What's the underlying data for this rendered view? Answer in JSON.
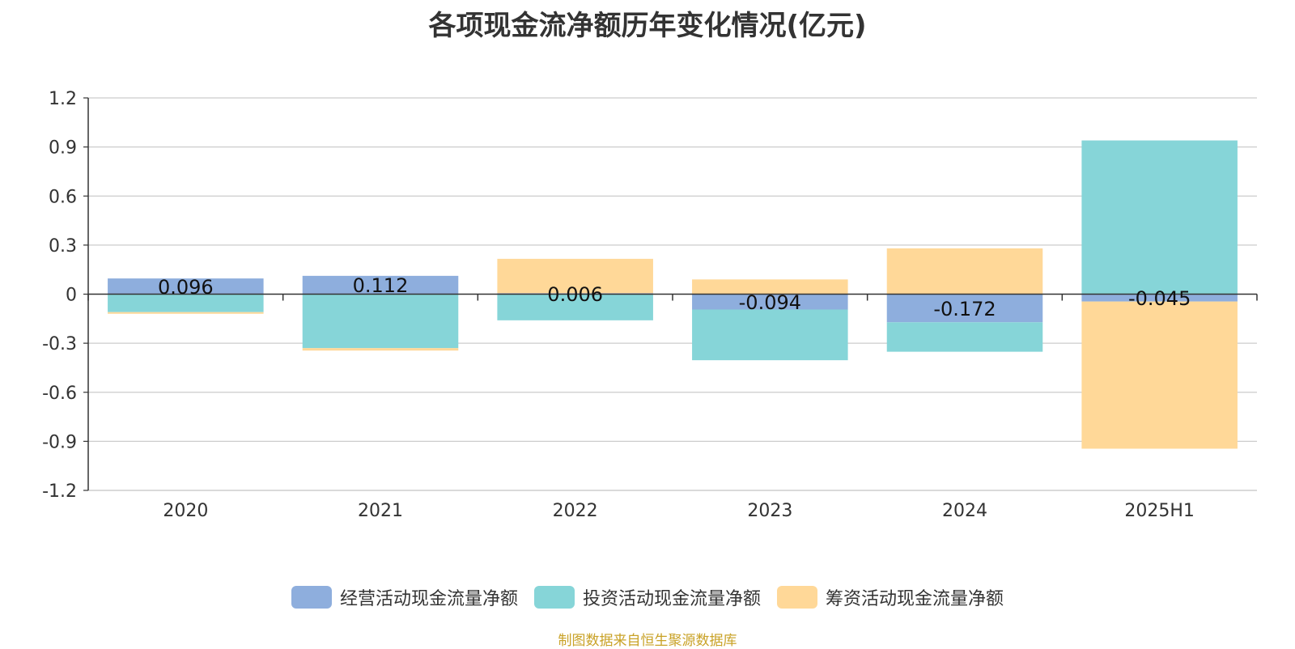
{
  "chart_data": {
    "type": "bar",
    "stacked": true,
    "title": "各项现金流净额历年变化情况(亿元)",
    "categories": [
      "2020",
      "2021",
      "2022",
      "2023",
      "2024",
      "2025H1"
    ],
    "series": [
      {
        "name": "经营活动现金流量净额",
        "color": "#8eaedd",
        "values": [
          0.096,
          0.112,
          0.006,
          -0.094,
          -0.172,
          -0.045
        ]
      },
      {
        "name": "投资活动现金流量净额",
        "color": "#86d5d8",
        "values": [
          -0.11,
          -0.33,
          -0.16,
          -0.31,
          -0.18,
          0.94
        ]
      },
      {
        "name": "筹资活动现金流量净额",
        "color": "#ffd898",
        "values": [
          -0.01,
          -0.015,
          0.21,
          0.09,
          0.28,
          -0.9
        ]
      }
    ],
    "data_labels": [
      "0.096",
      "0.112",
      "0.006",
      "-0.094",
      "-0.172",
      "-0.045"
    ],
    "yticks": [
      "1.2",
      "0.9",
      "0.6",
      "0.3",
      "0",
      "-0.3",
      "-0.6",
      "-0.9",
      "-1.2"
    ],
    "ylim": [
      -1.2,
      1.2
    ],
    "grid": true,
    "legend_position": "bottom"
  },
  "source_note": "制图数据来自恒生聚源数据库"
}
